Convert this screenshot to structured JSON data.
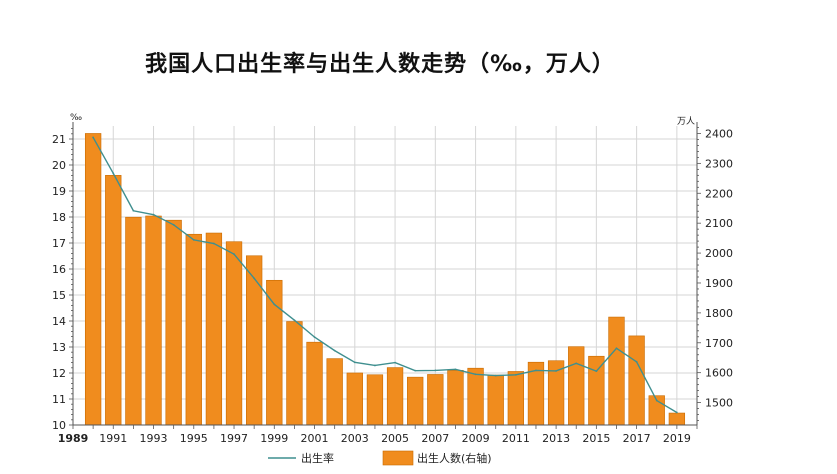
{
  "page": {
    "title": "我国人口出生率与出生人数走势（‰，万人）"
  },
  "colors": {
    "bar": "#f08c1e",
    "bar_stroke": "#c86a00",
    "line": "#3f8f8f",
    "grid": "#d6d6d6",
    "axis": "#555555"
  },
  "chart_data": {
    "type": "bar",
    "title": "我国人口出生率与出生人数走势（‰，万人）",
    "left_axis": {
      "unit": "‰",
      "min": 10,
      "max": 21.5,
      "ticks": [
        10,
        11,
        12,
        13,
        14,
        15,
        16,
        17,
        18,
        19,
        20,
        21
      ]
    },
    "right_axis": {
      "unit": "万人",
      "min": 1425,
      "max": 2425,
      "ticks": [
        1500,
        1600,
        1700,
        1800,
        1900,
        2000,
        2100,
        2200,
        2300,
        2400
      ]
    },
    "x_axis": {
      "min": 1989,
      "max": 2020,
      "tick_labels": [
        "1989",
        "1991",
        "1993",
        "1995",
        "1997",
        "1999",
        "2001",
        "2003",
        "2005",
        "2007",
        "2009",
        "2011",
        "2013",
        "2015",
        "2017",
        "2019"
      ]
    },
    "grid": true,
    "series": [
      {
        "name": "出生人数(右轴)",
        "type": "bar",
        "axis": "right",
        "x": [
          1990,
          1991,
          1992,
          1993,
          1994,
          1995,
          1996,
          1997,
          1998,
          1999,
          2000,
          2001,
          2002,
          2003,
          2004,
          2005,
          2006,
          2007,
          2008,
          2009,
          2010,
          2011,
          2012,
          2013,
          2014,
          2015,
          2016,
          2017,
          2018,
          2019
        ],
        "values": [
          2400,
          2260,
          2120,
          2124,
          2110,
          2063,
          2067,
          2038,
          1991,
          1909,
          1771,
          1702,
          1647,
          1599,
          1593,
          1617,
          1585,
          1594,
          1608,
          1615,
          1592,
          1604,
          1635,
          1640,
          1687,
          1655,
          1786,
          1723,
          1523,
          1465
        ]
      },
      {
        "name": "出生率",
        "type": "line",
        "axis": "left",
        "x": [
          1990,
          1991,
          1992,
          1993,
          1994,
          1995,
          1996,
          1997,
          1998,
          1999,
          2000,
          2001,
          2002,
          2003,
          2004,
          2005,
          2006,
          2007,
          2008,
          2009,
          2010,
          2011,
          2012,
          2013,
          2014,
          2015,
          2016,
          2017,
          2018,
          2019
        ],
        "values": [
          21.06,
          19.68,
          18.24,
          18.09,
          17.7,
          17.12,
          16.98,
          16.57,
          15.64,
          14.64,
          14.03,
          13.38,
          12.86,
          12.41,
          12.29,
          12.4,
          12.09,
          12.1,
          12.14,
          11.95,
          11.9,
          11.93,
          12.1,
          12.08,
          12.37,
          12.07,
          12.95,
          12.43,
          10.94,
          10.48
        ]
      }
    ],
    "legend": {
      "placement": "bottom",
      "items": [
        "出生率",
        "出生人数(右轴)"
      ]
    }
  }
}
